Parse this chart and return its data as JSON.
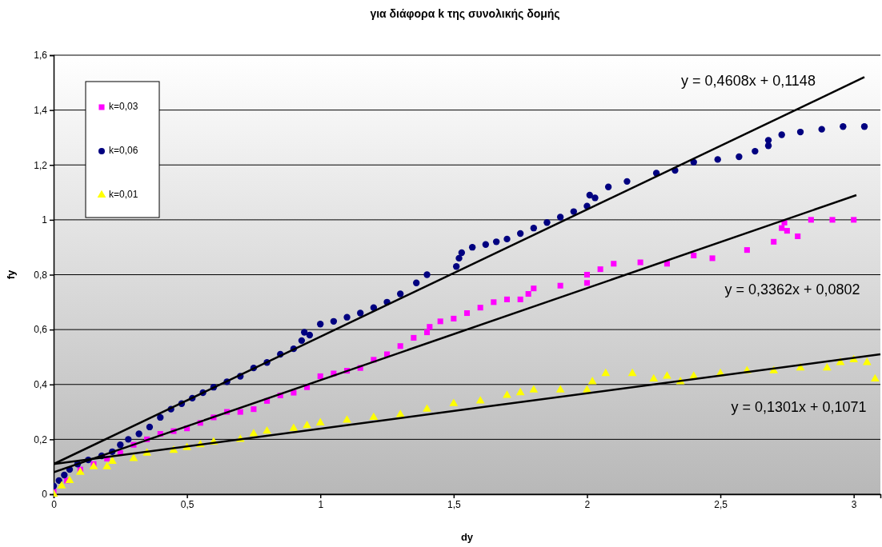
{
  "chart_data": {
    "type": "scatter",
    "title": "για διάφορα k της συνολικής δομής",
    "xlabel": "dy",
    "ylabel": "fy",
    "xlim": [
      0,
      3.1
    ],
    "xticks": [
      0,
      {
        "value": 0.5,
        "label": "0,5"
      },
      1,
      {
        "value": 1.5,
        "label": "1,5"
      },
      2,
      {
        "value": 2.5,
        "label": "2,5"
      },
      3
    ],
    "ylim": [
      0,
      1.6
    ],
    "yticks": [
      0,
      {
        "value": 0.2,
        "label": "0,2"
      },
      {
        "value": 0.4,
        "label": "0,4"
      },
      {
        "value": 0.6,
        "label": "0,6"
      },
      {
        "value": 0.8,
        "label": "0,8"
      },
      1,
      {
        "value": 1.2,
        "label": "1,2"
      },
      {
        "value": 1.4,
        "label": "1,4"
      },
      {
        "value": 1.6,
        "label": "1,6"
      }
    ],
    "grid": "y",
    "legend": "top left",
    "series": [
      {
        "name": "k=0,03",
        "color": "#ff00ff",
        "marker": "square",
        "x": [
          0,
          0.05,
          0.1,
          0.15,
          0.2,
          0.25,
          0.3,
          0.35,
          0.4,
          0.45,
          0.5,
          0.55,
          0.6,
          0.65,
          0.7,
          0.75,
          0.8,
          0.85,
          0.9,
          0.95,
          1.0,
          1.05,
          1.1,
          1.15,
          1.2,
          1.25,
          1.3,
          1.35,
          1.4,
          1.41,
          1.45,
          1.5,
          1.55,
          1.6,
          1.65,
          1.7,
          1.75,
          1.78,
          1.8,
          1.9,
          2.0,
          2.0,
          2.05,
          2.1,
          2.2,
          2.3,
          2.4,
          2.47,
          2.6,
          2.7,
          2.73,
          2.74,
          2.75,
          2.79,
          2.84,
          2.92,
          3.0
        ],
        "values": [
          0.01,
          0.05,
          0.09,
          0.11,
          0.13,
          0.15,
          0.18,
          0.2,
          0.22,
          0.23,
          0.24,
          0.26,
          0.28,
          0.3,
          0.3,
          0.31,
          0.34,
          0.36,
          0.37,
          0.39,
          0.43,
          0.44,
          0.45,
          0.46,
          0.49,
          0.51,
          0.54,
          0.57,
          0.59,
          0.61,
          0.63,
          0.64,
          0.66,
          0.68,
          0.7,
          0.71,
          0.71,
          0.73,
          0.75,
          0.76,
          0.77,
          0.8,
          0.82,
          0.84,
          0.845,
          0.84,
          0.87,
          0.86,
          0.89,
          0.92,
          0.97,
          0.99,
          0.96,
          0.94,
          1.0,
          1.0,
          1.0
        ]
      },
      {
        "name": "k=0,06",
        "color": "#000080",
        "marker": "circle",
        "x": [
          0,
          0.02,
          0.04,
          0.06,
          0.09,
          0.13,
          0.18,
          0.22,
          0.25,
          0.28,
          0.32,
          0.36,
          0.4,
          0.44,
          0.48,
          0.52,
          0.56,
          0.6,
          0.65,
          0.7,
          0.75,
          0.8,
          0.85,
          0.9,
          0.93,
          0.94,
          0.96,
          1.0,
          1.05,
          1.1,
          1.15,
          1.2,
          1.25,
          1.3,
          1.36,
          1.4,
          1.51,
          1.52,
          1.53,
          1.57,
          1.62,
          1.66,
          1.7,
          1.75,
          1.8,
          1.85,
          1.9,
          1.95,
          2.0,
          2.01,
          2.03,
          2.08,
          2.15,
          2.26,
          2.33,
          2.4,
          2.49,
          2.57,
          2.63,
          2.68,
          2.68,
          2.73,
          2.8,
          2.88,
          2.96,
          3.04
        ],
        "values": [
          0.03,
          0.05,
          0.07,
          0.09,
          0.11,
          0.125,
          0.14,
          0.155,
          0.18,
          0.2,
          0.22,
          0.245,
          0.28,
          0.31,
          0.33,
          0.35,
          0.37,
          0.39,
          0.41,
          0.43,
          0.46,
          0.48,
          0.51,
          0.53,
          0.56,
          0.59,
          0.58,
          0.62,
          0.63,
          0.645,
          0.66,
          0.68,
          0.7,
          0.73,
          0.77,
          0.8,
          0.83,
          0.86,
          0.88,
          0.9,
          0.91,
          0.92,
          0.93,
          0.95,
          0.97,
          0.99,
          1.01,
          1.03,
          1.05,
          1.09,
          1.08,
          1.12,
          1.14,
          1.17,
          1.18,
          1.21,
          1.22,
          1.23,
          1.25,
          1.29,
          1.27,
          1.31,
          1.32,
          1.33,
          1.34,
          1.34
        ]
      },
      {
        "name": "k=0,01",
        "color": "#ffff00",
        "marker": "triangle",
        "x": [
          0,
          0.03,
          0.06,
          0.1,
          0.15,
          0.2,
          0.22,
          0.3,
          0.35,
          0.45,
          0.5,
          0.55,
          0.6,
          0.7,
          0.75,
          0.8,
          0.9,
          0.95,
          1.0,
          1.1,
          1.2,
          1.3,
          1.4,
          1.5,
          1.6,
          1.7,
          1.75,
          1.8,
          1.9,
          2.0,
          2.02,
          2.07,
          2.17,
          2.25,
          2.3,
          2.35,
          2.4,
          2.5,
          2.6,
          2.7,
          2.8,
          2.9,
          2.95,
          3.0,
          3.05,
          3.08
        ],
        "values": [
          0.0,
          0.03,
          0.05,
          0.08,
          0.1,
          0.1,
          0.12,
          0.13,
          0.15,
          0.16,
          0.17,
          0.18,
          0.19,
          0.2,
          0.22,
          0.23,
          0.24,
          0.25,
          0.26,
          0.27,
          0.28,
          0.29,
          0.31,
          0.33,
          0.34,
          0.36,
          0.37,
          0.38,
          0.38,
          0.38,
          0.41,
          0.44,
          0.44,
          0.42,
          0.43,
          0.41,
          0.43,
          0.44,
          0.45,
          0.45,
          0.46,
          0.46,
          0.48,
          0.49,
          0.48,
          0.42
        ]
      },
      {
        "type": "line",
        "color": "#000000",
        "x": [
          0,
          3.04
        ],
        "values": [
          0.11,
          1.52
        ]
      },
      {
        "type": "line",
        "color": "#000000",
        "x": [
          0,
          3.01
        ],
        "values": [
          0.08,
          1.09
        ]
      },
      {
        "type": "line",
        "color": "#000000",
        "x": [
          0,
          3.1
        ],
        "values": [
          0.11,
          0.51
        ]
      }
    ],
    "annotations": [
      "y = 0,4608x + 0,1148",
      "y = 0,3362x + 0,0802",
      "y = 0,1301x + 0,1071"
    ]
  }
}
